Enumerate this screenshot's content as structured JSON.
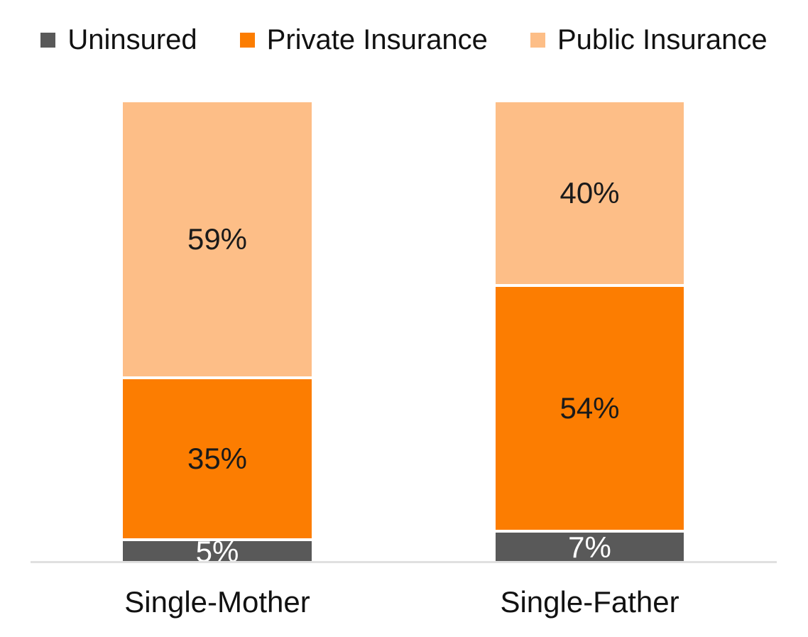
{
  "chart_data": {
    "type": "bar",
    "subtype": "stacked-100-percent",
    "title": "",
    "xlabel": "",
    "ylabel": "",
    "grid": false,
    "legend_position": "top",
    "background_color": "#FFFFFF",
    "axis_line_color": "#E0E0E0",
    "segment_gap_color": "#FFFFFF",
    "data_label_suffix": "%",
    "categories": [
      "Single-Mother",
      "Single-Father"
    ],
    "series": [
      {
        "name": "Uninsured",
        "color": "#595959",
        "label_color": "#FFFFFF",
        "values": [
          5,
          7
        ]
      },
      {
        "name": "Private Insurance",
        "color": "#FC7D01",
        "label_color": "#1A1A1A",
        "values": [
          35,
          54
        ]
      },
      {
        "name": "Public Insurance",
        "color": "#FDBE87",
        "label_color": "#1A1A1A",
        "values": [
          59,
          40
        ]
      }
    ],
    "stack_order_bottom_to_top": [
      "Uninsured",
      "Private Insurance",
      "Public Insurance"
    ],
    "data_labels_visible": [
      "5%",
      "35%",
      "59%",
      "7%",
      "54%",
      "40%"
    ]
  }
}
